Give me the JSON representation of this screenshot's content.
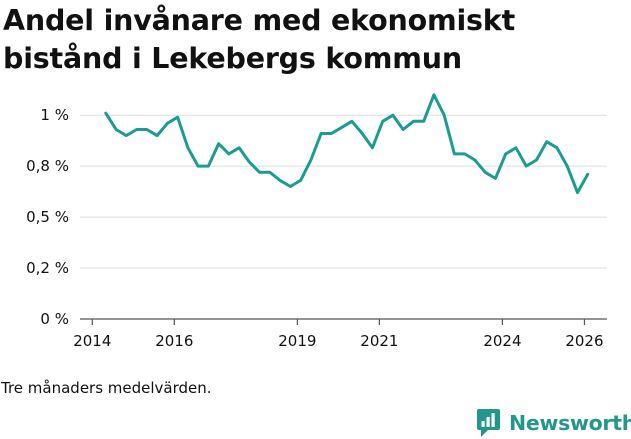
{
  "colors": {
    "line": "#1a9c91",
    "grid": "#dedede",
    "text": "#111111",
    "brand": "#23978b"
  },
  "chart_data": {
    "type": "line",
    "title": "Andel invånare med ekonomiskt bistånd i Lekebergs kommun",
    "subtitle": "",
    "xlabel": "",
    "ylabel": "",
    "note": "Tre månaders medelvärden.",
    "xlim": [
      2013.7,
      2026.55
    ],
    "ylim": [
      0,
      1.05
    ],
    "y_ticks": [
      {
        "value": 0,
        "label": "0 %"
      },
      {
        "value": 0.25,
        "label": "0,2 %"
      },
      {
        "value": 0.5,
        "label": "0,5 %"
      },
      {
        "value": 0.75,
        "label": "0,8 %"
      },
      {
        "value": 1.0,
        "label": "1 %"
      }
    ],
    "x_ticks": [
      {
        "value": 2014,
        "label": "2014"
      },
      {
        "value": 2016,
        "label": "2016"
      },
      {
        "value": 2019,
        "label": "2019"
      },
      {
        "value": 2021,
        "label": "2021"
      },
      {
        "value": 2024,
        "label": "2024"
      },
      {
        "value": 2026,
        "label": "2026"
      }
    ],
    "grid": true,
    "series": [
      {
        "name": "Andel invånare med ekonomiskt bistånd",
        "x": [
          2014.33,
          2014.58,
          2014.83,
          2015.08,
          2015.33,
          2015.58,
          2015.83,
          2016.08,
          2016.33,
          2016.58,
          2016.83,
          2017.08,
          2017.33,
          2017.58,
          2017.83,
          2018.08,
          2018.33,
          2018.58,
          2018.83,
          2019.08,
          2019.33,
          2019.58,
          2019.83,
          2020.08,
          2020.33,
          2020.58,
          2020.83,
          2021.08,
          2021.33,
          2021.58,
          2021.83,
          2022.08,
          2022.33,
          2022.58,
          2022.83,
          2023.08,
          2023.33,
          2023.58,
          2023.83,
          2024.08,
          2024.33,
          2024.58,
          2024.83,
          2025.08,
          2025.33,
          2025.58,
          2025.83,
          2026.08
        ],
        "values": [
          1.01,
          0.93,
          0.9,
          0.93,
          0.93,
          0.9,
          0.96,
          0.99,
          0.84,
          0.75,
          0.75,
          0.86,
          0.81,
          0.84,
          0.77,
          0.72,
          0.72,
          0.68,
          0.65,
          0.68,
          0.78,
          0.91,
          0.91,
          0.94,
          0.97,
          0.91,
          0.84,
          0.97,
          1.0,
          0.93,
          0.97,
          0.97,
          1.1,
          1.0,
          0.81,
          0.81,
          0.78,
          0.72,
          0.69,
          0.81,
          0.84,
          0.75,
          0.78,
          0.87,
          0.84,
          0.75,
          0.62,
          0.71
        ]
      }
    ]
  },
  "brand": {
    "name": "Newsworthy",
    "logo_icon": "newsworthy-logo-icon"
  }
}
